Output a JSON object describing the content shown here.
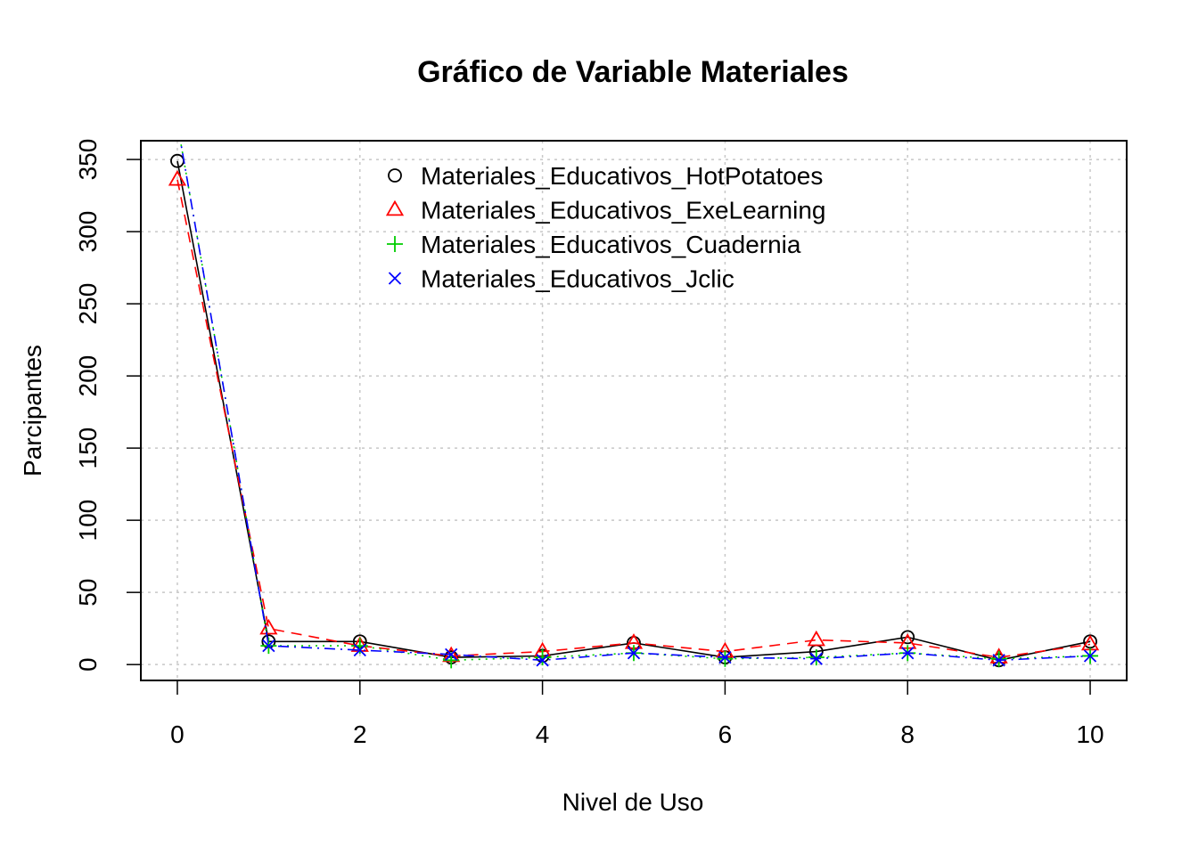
{
  "chart_data": {
    "type": "line",
    "title": "Gráfico de Variable Materiales",
    "xlabel": "Nivel de Uso",
    "ylabel": "Parcipantes",
    "xlim": [
      -0.4,
      10.4
    ],
    "ylim": [
      -11,
      363
    ],
    "x_ticks": [
      0,
      2,
      4,
      6,
      8,
      10
    ],
    "y_ticks": [
      0,
      50,
      100,
      150,
      200,
      250,
      300,
      350
    ],
    "grid": true,
    "legend_position": "top-center",
    "x": [
      0,
      1,
      2,
      3,
      4,
      5,
      6,
      7,
      8,
      9,
      10
    ],
    "series": [
      {
        "name": "Materiales_Educativos_HotPotatoes",
        "values": [
          349,
          16,
          16,
          5,
          6,
          15,
          5,
          9,
          19,
          3,
          16
        ],
        "color": "#000000",
        "marker": "circle",
        "line_style": "solid"
      },
      {
        "name": "Materiales_Educativos_ExeLearning",
        "values": [
          336,
          25,
          13,
          6,
          9,
          15,
          9,
          17,
          15,
          5,
          14
        ],
        "color": "#ff0000",
        "marker": "triangle",
        "line_style": "dashed"
      },
      {
        "name": "Materiales_Educativos_Cuadernia",
        "values": [
          375,
          13,
          13,
          3,
          5,
          8,
          4,
          5,
          8,
          4,
          6
        ],
        "color": "#00cd00",
        "marker": "plus",
        "line_style": "dotted"
      },
      {
        "name": "Materiales_Educativos_Jclic",
        "values": [
          375,
          13,
          10,
          7,
          3,
          8,
          5,
          4,
          8,
          3,
          6
        ],
        "color": "#0000ff",
        "marker": "cross",
        "line_style": "dotdash"
      }
    ]
  }
}
